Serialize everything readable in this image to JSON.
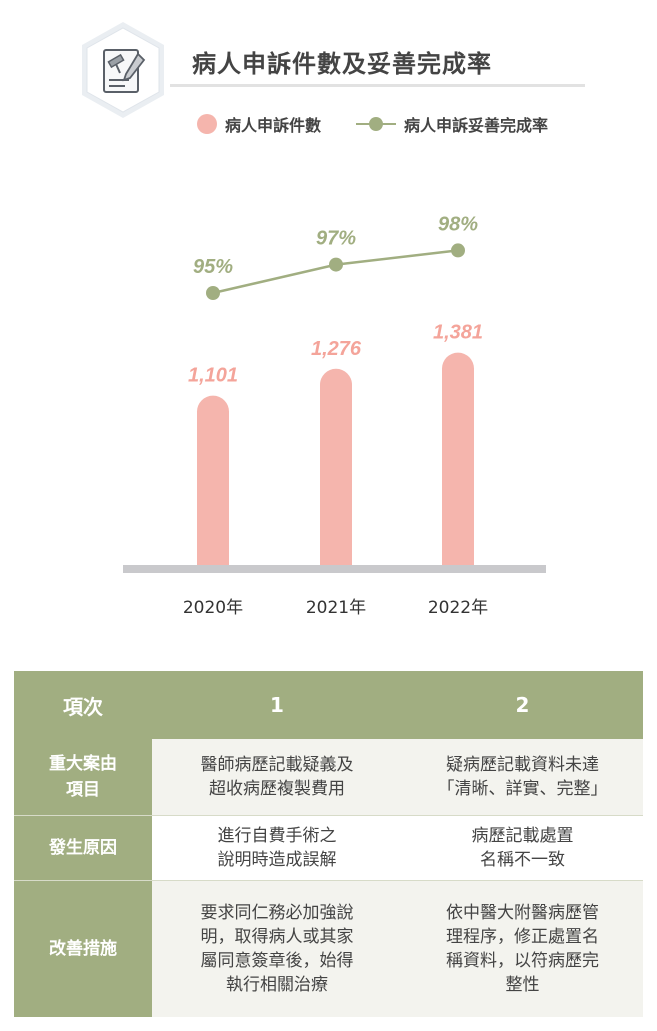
{
  "header": {
    "title": "病人申訴件數及妥善完成率",
    "icon": "document-gavel-icon"
  },
  "legend": {
    "bar_label": "病人申訴件數",
    "line_label": "病人申訴妥善完成率"
  },
  "colors": {
    "bar": "#f5b5ad",
    "bar_label": "#f4a49a",
    "line": "#a1ae81",
    "axis": "#c9c9cc",
    "table_header": "#a1ae81"
  },
  "chart_data": {
    "type": "bar",
    "categories": [
      "2020年",
      "2021年",
      "2022年"
    ],
    "series": [
      {
        "name": "病人申訴件數",
        "type": "bar",
        "values": [
          1101,
          1276,
          1381
        ],
        "labels": [
          "1,101",
          "1,276",
          "1,381"
        ]
      },
      {
        "name": "病人申訴妥善完成率",
        "type": "line",
        "values": [
          95,
          97,
          98
        ],
        "labels": [
          "95%",
          "97%",
          "98%"
        ]
      }
    ],
    "title": "病人申訴件數及妥善完成率",
    "xlabel": "",
    "ylabel": "",
    "legend": "top",
    "grid": false
  },
  "table": {
    "headers": [
      "項次",
      "1",
      "2"
    ],
    "rows": [
      {
        "label": "重大案由\n項目",
        "cells": [
          "醫師病歷記載疑義及\n超收病歷複製費用",
          "疑病歷記載資料未達\n「清晰、詳實、完整」"
        ]
      },
      {
        "label": "發生原因",
        "cells": [
          "進行自費手術之\n說明時造成誤解",
          "病歷記載處置\n名稱不一致"
        ]
      },
      {
        "label": "改善措施",
        "cells": [
          "要求同仁務必加強說\n明，取得病人或其家\n屬同意簽章後，始得\n執行相關治療",
          "依中醫大附醫病歷管\n理程序，修正處置名\n稱資料，以符病歷完\n整性"
        ]
      }
    ]
  }
}
